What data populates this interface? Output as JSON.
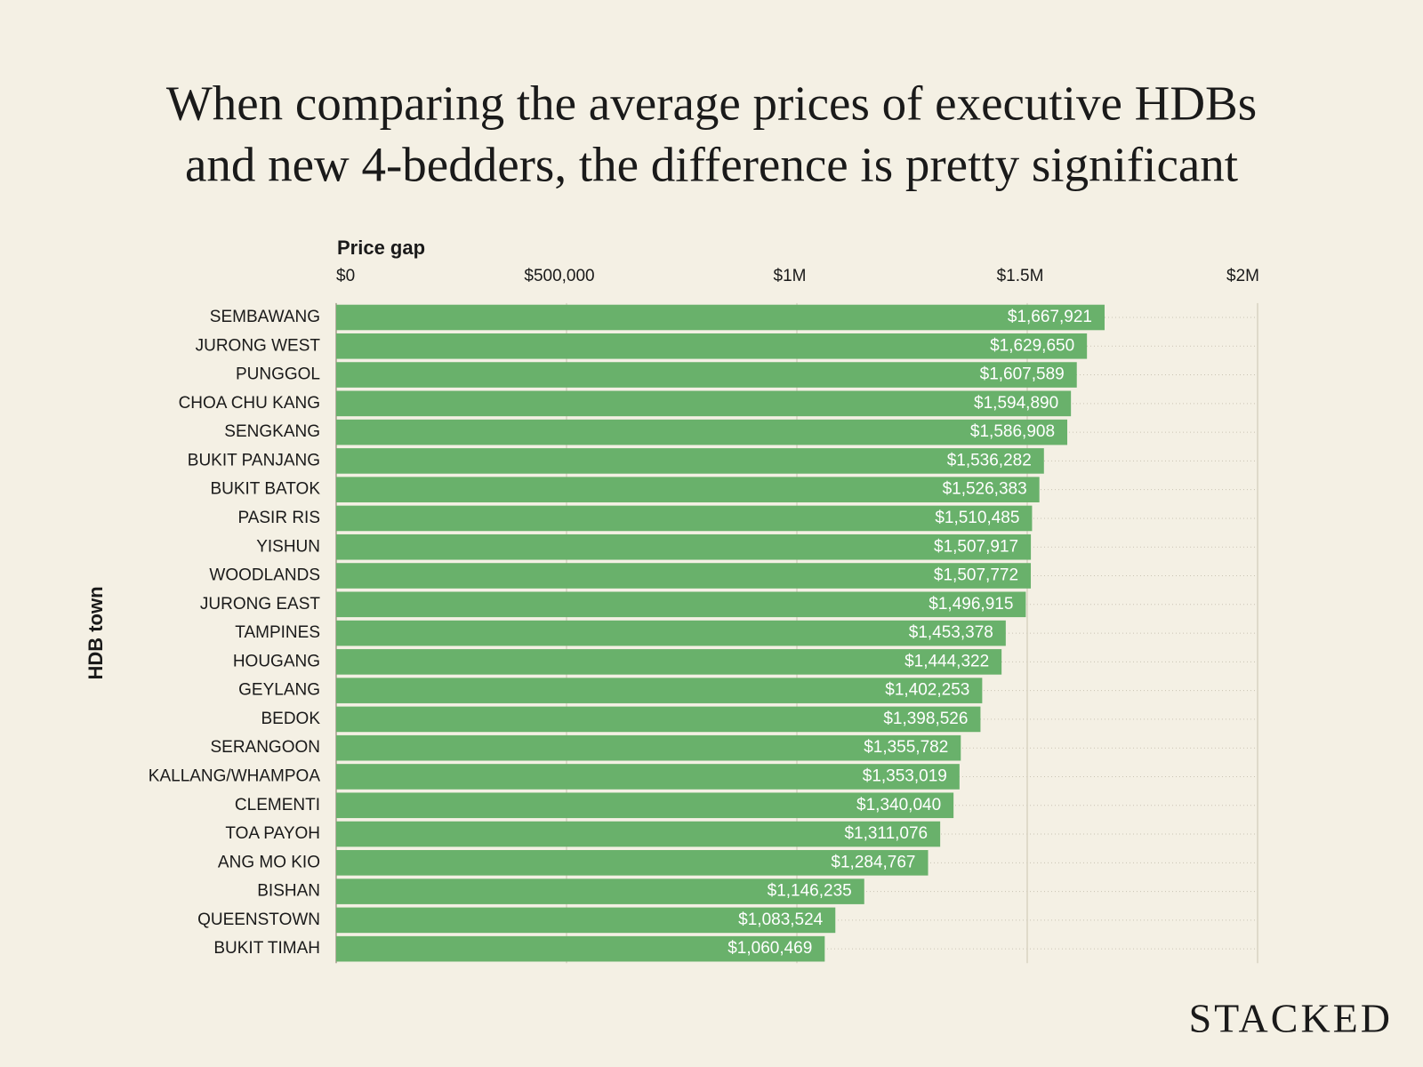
{
  "chart_data": {
    "type": "barh",
    "title": [
      "When comparing the average prices of executive HDBs",
      "and new 4-bedders, the difference is pretty significant"
    ],
    "x_label": "Price gap",
    "y_label": "HDB town",
    "logo": "STACKED",
    "color": "#69b16b",
    "grid": true,
    "xlim": [
      0,
      2000000
    ],
    "xticks": [
      {
        "value": 0,
        "label": "$0"
      },
      {
        "value": 500000,
        "label": "$500,000"
      },
      {
        "value": 1000000,
        "label": "$1M"
      },
      {
        "value": 1500000,
        "label": "$1.5M"
      },
      {
        "value": 2000000,
        "label": "$2M"
      }
    ],
    "categories": [
      "SEMBAWANG",
      "JURONG WEST",
      "PUNGGOL",
      "CHOA CHU KANG",
      "SENGKANG",
      "BUKIT PANJANG",
      "BUKIT BATOK",
      "PASIR RIS",
      "YISHUN",
      "WOODLANDS",
      "JURONG EAST",
      "TAMPINES",
      "HOUGANG",
      "GEYLANG",
      "BEDOK",
      "SERANGOON",
      "KALLANG/WHAMPOA",
      "CLEMENTI",
      "TOA PAYOH",
      "ANG MO KIO",
      "BISHAN",
      "QUEENSTOWN",
      "BUKIT TIMAH"
    ],
    "values": [
      1667921,
      1629650,
      1607589,
      1594890,
      1586908,
      1536282,
      1526383,
      1510485,
      1507917,
      1507772,
      1496915,
      1453378,
      1444322,
      1402253,
      1398526,
      1355782,
      1353019,
      1340040,
      1311076,
      1284767,
      1146235,
      1083524,
      1060469
    ],
    "value_labels": [
      "$1,667,921",
      "$1,629,650",
      "$1,607,589",
      "$1,594,890",
      "$1,586,908",
      "$1,536,282",
      "$1,526,383",
      "$1,510,485",
      "$1,507,917",
      "$1,507,772",
      "$1,496,915",
      "$1,453,378",
      "$1,444,322",
      "$1,402,253",
      "$1,398,526",
      "$1,355,782",
      "$1,353,019",
      "$1,340,040",
      "$1,311,076",
      "$1,284,767",
      "$1,146,235",
      "$1,083,524",
      "$1,060,469"
    ]
  }
}
